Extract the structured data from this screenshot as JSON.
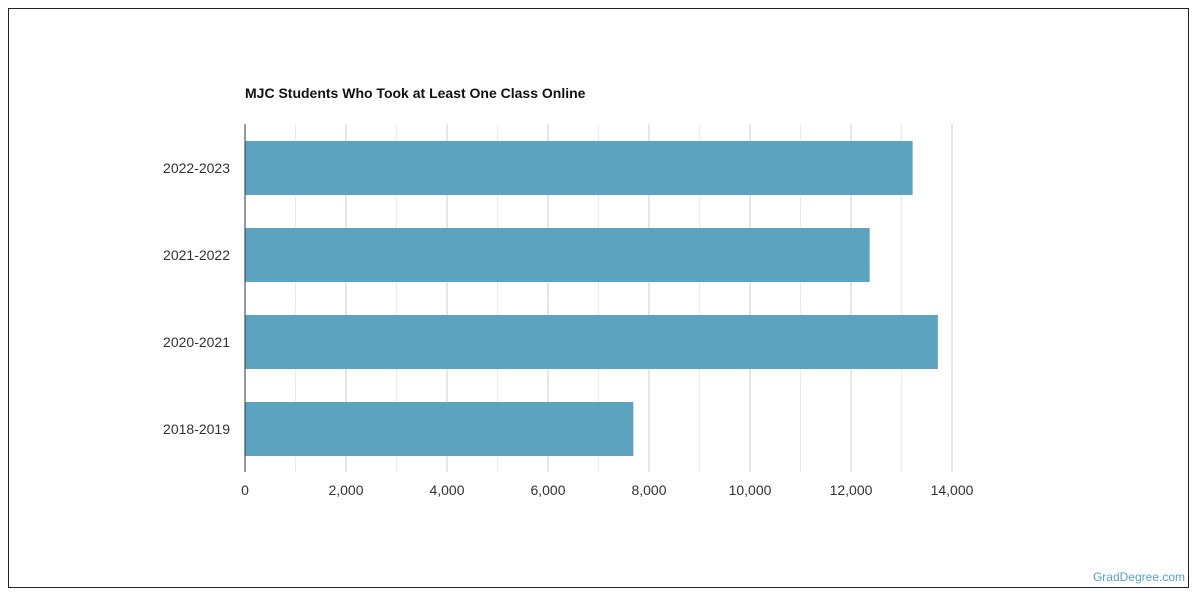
{
  "chart_data": {
    "type": "bar",
    "orientation": "horizontal",
    "title": "MJC Students Who Took at Least One Class Online",
    "categories": [
      "2022-2023",
      "2021-2022",
      "2020-2021",
      "2018-2019"
    ],
    "values": [
      13220,
      12370,
      13720,
      7690
    ],
    "xlim": [
      0,
      14000
    ],
    "x_ticks": [
      0,
      2000,
      4000,
      6000,
      8000,
      10000,
      12000,
      14000
    ],
    "x_tick_labels": [
      "0",
      "2,000",
      "4,000",
      "6,000",
      "8,000",
      "10,000",
      "12,000",
      "14,000"
    ],
    "grid": true,
    "bar_color": "#5ba3bf"
  },
  "watermark": "GradDegree.com"
}
